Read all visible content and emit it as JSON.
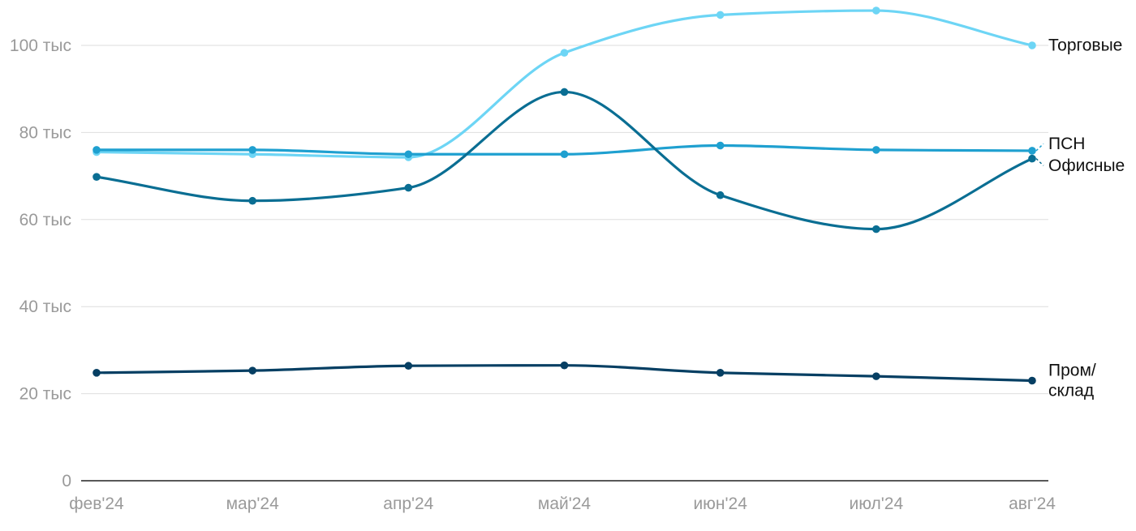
{
  "chart_data": {
    "type": "line",
    "title": "",
    "xlabel": "",
    "ylabel": "",
    "categories": [
      "фев'24",
      "мар'24",
      "апр'24",
      "май'24",
      "июн'24",
      "июл'24",
      "авг'24"
    ],
    "ylim": [
      0,
      110000
    ],
    "y_ticks": [
      {
        "value": 0,
        "label": "0"
      },
      {
        "value": 20000,
        "label": "20 тыс"
      },
      {
        "value": 40000,
        "label": "40 тыс"
      },
      {
        "value": 60000,
        "label": "60 тыс"
      },
      {
        "value": 80000,
        "label": "80 тыс"
      },
      {
        "value": 100000,
        "label": "100 тыс"
      }
    ],
    "grid": true,
    "legend": "direct labels at right end of each line",
    "series": [
      {
        "name": "Торговые",
        "color": "#6dd5f5",
        "values": [
          75500,
          75000,
          74300,
          98300,
          107000,
          108000,
          100000
        ],
        "label_lines": [
          "Торговые"
        ]
      },
      {
        "name": "ПСН",
        "color": "#1fa0d0",
        "values": [
          76000,
          76000,
          75000,
          75000,
          77000,
          76000,
          75800
        ],
        "label_lines": [
          "ПСН"
        ]
      },
      {
        "name": "Офисные",
        "color": "#0a6e93",
        "values": [
          69800,
          64300,
          67300,
          89300,
          65600,
          57800,
          74000
        ],
        "label_lines": [
          "Офисные"
        ]
      },
      {
        "name": "Пром/склад",
        "color": "#063f63",
        "values": [
          24800,
          25300,
          26400,
          26500,
          24800,
          24000,
          23000
        ],
        "label_lines": [
          "Пром/",
          "склад"
        ]
      }
    ]
  }
}
